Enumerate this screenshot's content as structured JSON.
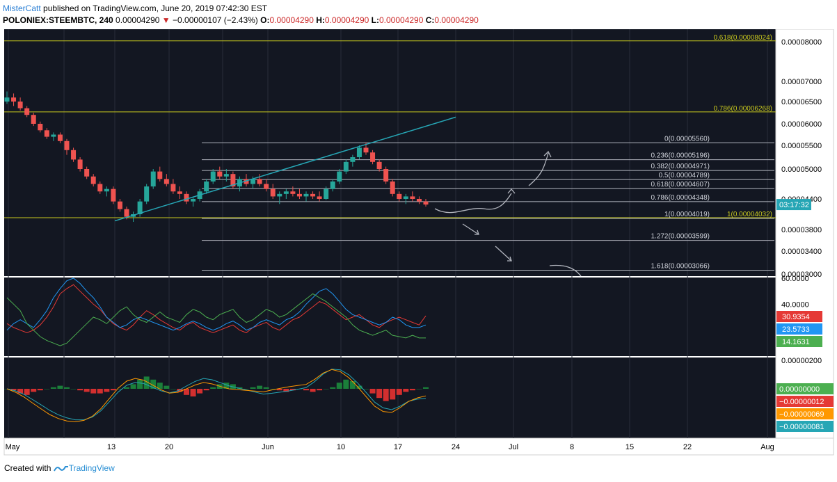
{
  "header": {
    "author": "MisterCatt",
    "published": "published on TradingView.com, June 20, 2019 07:42:30 EST",
    "symbol": "POLONIEX:STEEMBTC, 240",
    "last": "0.00004290",
    "change": "−0.00000107 (−2.43%)",
    "o_label": "O:",
    "o": "0.00004290",
    "h_label": "H:",
    "h": "0.00004290",
    "l_label": "L:",
    "l": "0.00004290",
    "c_label": "C:",
    "c": "0.00004290"
  },
  "footer": {
    "created": "Created with",
    "brand": "TradingView"
  },
  "colors": {
    "background": "#131722",
    "candle_up": "#26a69a",
    "candle_down": "#ef5350",
    "fib": "#b2b5be",
    "fib_yellow": "#c8c81e",
    "trendline": "#26a6b5",
    "osc_red": "#e53935",
    "osc_blue": "#2196f3",
    "osc_green": "#4caf50",
    "macd_orange": "#ff9800",
    "macd_teal": "#26a6b5"
  },
  "chart_data": [
    {
      "type": "candlestick",
      "price_axis_labels": [
        "0.00008000",
        "0.00007000",
        "0.00006500",
        "0.00006000",
        "0.00005500",
        "0.00005000",
        "0.00004400",
        "0.00003800",
        "0.00003400",
        "0.00003000"
      ],
      "time_axis_labels": [
        "May",
        "13",
        "20",
        "Jun",
        "10",
        "17",
        "24",
        "Jul",
        "8",
        "15",
        "22",
        "Aug"
      ],
      "countdown": "03:17:32",
      "ohlc_series": [
        [
          6500,
          6750,
          6450,
          6600
        ],
        [
          6600,
          6700,
          6400,
          6500
        ],
        [
          6500,
          6600,
          6300,
          6350
        ],
        [
          6350,
          6400,
          6150,
          6200
        ],
        [
          6200,
          6250,
          5950,
          6000
        ],
        [
          6000,
          6050,
          5800,
          5850
        ],
        [
          5850,
          5900,
          5650,
          5700
        ],
        [
          5700,
          5800,
          5600,
          5750
        ],
        [
          5750,
          5800,
          5550,
          5600
        ],
        [
          5600,
          5650,
          5300,
          5400
        ],
        [
          5400,
          5450,
          5150,
          5200
        ],
        [
          5200,
          5250,
          4950,
          5000
        ],
        [
          5000,
          5050,
          4800,
          4850
        ],
        [
          4850,
          4900,
          4650,
          4700
        ],
        [
          4700,
          4750,
          4500,
          4550
        ],
        [
          4550,
          4650,
          4450,
          4600
        ],
        [
          4600,
          4650,
          4300,
          4350
        ],
        [
          4350,
          4400,
          4150,
          4200
        ],
        [
          4200,
          4250,
          4000,
          4050
        ],
        [
          4050,
          4150,
          3950,
          4100
        ],
        [
          4100,
          4400,
          4050,
          4350
        ],
        [
          4350,
          4700,
          4300,
          4650
        ],
        [
          4650,
          5000,
          4600,
          4950
        ],
        [
          4950,
          5050,
          4750,
          4800
        ],
        [
          4800,
          4900,
          4650,
          4700
        ],
        [
          4700,
          4800,
          4500,
          4550
        ],
        [
          4550,
          4650,
          4400,
          4500
        ],
        [
          4500,
          4550,
          4300,
          4350
        ],
        [
          4350,
          4450,
          4250,
          4400
        ],
        [
          4400,
          4600,
          4350,
          4550
        ],
        [
          4550,
          4800,
          4500,
          4750
        ],
        [
          4750,
          5000,
          4700,
          4950
        ],
        [
          4950,
          5050,
          4800,
          4850
        ],
        [
          4850,
          5000,
          4750,
          4900
        ],
        [
          4900,
          4950,
          4600,
          4650
        ],
        [
          4650,
          4850,
          4550,
          4800
        ],
        [
          4800,
          4900,
          4650,
          4700
        ],
        [
          4700,
          4850,
          4600,
          4800
        ],
        [
          4800,
          4900,
          4650,
          4700
        ],
        [
          4700,
          4800,
          4550,
          4600
        ],
        [
          4600,
          4700,
          4400,
          4450
        ],
        [
          4450,
          4550,
          4300,
          4500
        ],
        [
          4500,
          4600,
          4400,
          4550
        ],
        [
          4550,
          4650,
          4450,
          4500
        ],
        [
          4500,
          4600,
          4400,
          4450
        ],
        [
          4450,
          4550,
          4350,
          4500
        ],
        [
          4500,
          4550,
          4400,
          4450
        ],
        [
          4450,
          4550,
          4350,
          4400
        ],
        [
          4400,
          4650,
          4380,
          4600
        ],
        [
          4600,
          4800,
          4550,
          4750
        ],
        [
          4750,
          5000,
          4700,
          4950
        ],
        [
          4950,
          5200,
          4900,
          5150
        ],
        [
          5150,
          5300,
          5050,
          5250
        ],
        [
          5250,
          5500,
          5200,
          5450
        ],
        [
          5450,
          5560,
          5300,
          5350
        ],
        [
          5350,
          5400,
          5100,
          5150
        ],
        [
          5150,
          5200,
          4950,
          5000
        ],
        [
          5000,
          5050,
          4700,
          4750
        ],
        [
          4750,
          4800,
          4450,
          4500
        ],
        [
          4500,
          4550,
          4350,
          4400
        ],
        [
          4400,
          4500,
          4300,
          4450
        ],
        [
          4450,
          4550,
          4350,
          4400
        ],
        [
          4400,
          4450,
          4300,
          4350
        ],
        [
          4350,
          4400,
          4250,
          4290
        ]
      ],
      "fib_upper": [
        {
          "label": "0.618",
          "value": "0.00008024"
        },
        {
          "label": "0.786",
          "value": "0.00006268"
        },
        {
          "label": "1",
          "value": "0.00004032"
        }
      ],
      "fib_levels": [
        {
          "label": "0",
          "value": "0.00005560"
        },
        {
          "label": "0.236",
          "value": "0.00005196"
        },
        {
          "label": "0.382",
          "value": "0.00004971"
        },
        {
          "label": "0.5",
          "value": "0.00004789"
        },
        {
          "label": "0.618",
          "value": "0.00004607"
        },
        {
          "label": "0.786",
          "value": "0.00004348"
        },
        {
          "label": "1",
          "value": "0.00004019"
        },
        {
          "label": "1.272",
          "value": "0.00003599"
        },
        {
          "label": "1.618",
          "value": "0.00003066"
        }
      ]
    },
    {
      "type": "line",
      "axis_labels": [
        "60.0000",
        "40.0000"
      ],
      "badges": [
        {
          "value": "30.9354",
          "color": "#e53935"
        },
        {
          "value": "23.5733",
          "color": "#2196f3"
        },
        {
          "value": "14.1631",
          "color": "#4caf50"
        }
      ],
      "series": [
        {
          "color": "#e53935",
          "values": [
            25,
            22,
            20,
            18,
            20,
            24,
            30,
            38,
            48,
            52,
            55,
            50,
            45,
            40,
            36,
            30,
            25,
            22,
            20,
            24,
            30,
            35,
            32,
            28,
            25,
            22,
            20,
            24,
            26,
            22,
            20,
            18,
            20,
            22,
            24,
            20,
            18,
            22,
            24,
            26,
            22,
            20,
            24,
            28,
            30,
            34,
            38,
            42,
            40,
            36,
            32,
            28,
            30,
            32,
            28,
            24,
            22,
            26,
            28,
            30,
            28,
            26,
            24,
            31
          ]
        },
        {
          "color": "#2196f3",
          "values": [
            20,
            25,
            28,
            25,
            22,
            28,
            35,
            45,
            52,
            58,
            60,
            56,
            50,
            45,
            38,
            30,
            26,
            22,
            24,
            28,
            30,
            28,
            26,
            24,
            22,
            20,
            22,
            25,
            27,
            25,
            22,
            20,
            22,
            25,
            27,
            24,
            20,
            22,
            26,
            28,
            26,
            24,
            28,
            30,
            34,
            40,
            45,
            50,
            52,
            48,
            42,
            36,
            32,
            30,
            28,
            26,
            24,
            26,
            30,
            28,
            24,
            22,
            22,
            24
          ]
        },
        {
          "color": "#4caf50",
          "values": [
            45,
            40,
            35,
            25,
            20,
            15,
            12,
            10,
            8,
            10,
            15,
            20,
            25,
            30,
            28,
            25,
            30,
            35,
            38,
            32,
            28,
            26,
            30,
            34,
            30,
            28,
            26,
            32,
            36,
            34,
            30,
            28,
            32,
            34,
            36,
            30,
            26,
            28,
            32,
            36,
            34,
            30,
            32,
            36,
            40,
            44,
            48,
            45,
            42,
            38,
            34,
            30,
            24,
            20,
            18,
            16,
            18,
            20,
            16,
            15,
            14,
            16,
            14,
            14
          ]
        }
      ]
    },
    {
      "type": "bar",
      "axis_labels": [
        "0.00000200"
      ],
      "badges": [
        {
          "value": "0.00000000",
          "color": "#4caf50"
        },
        {
          "value": "−0.00000012",
          "color": "#e53935"
        },
        {
          "value": "−0.00000069",
          "color": "#ff9800"
        },
        {
          "value": "−0.00000081",
          "color": "#26a6b5"
        }
      ],
      "histogram": [
        0,
        -1,
        -3,
        -4,
        -2,
        -1,
        0,
        1,
        2,
        1,
        0,
        -1,
        -2,
        -3,
        -3,
        -2,
        -1,
        0,
        1,
        3,
        6,
        8,
        6,
        4,
        2,
        0,
        -2,
        -4,
        -5,
        -3,
        -1,
        1,
        3,
        4,
        3,
        1,
        0,
        1,
        2,
        1,
        0,
        -1,
        -2,
        -1,
        0,
        -1,
        -2,
        -1,
        0,
        1,
        4,
        6,
        5,
        2,
        0,
        -3,
        -6,
        -8,
        -7,
        -4,
        -2,
        -1,
        0,
        1
      ]
    }
  ]
}
